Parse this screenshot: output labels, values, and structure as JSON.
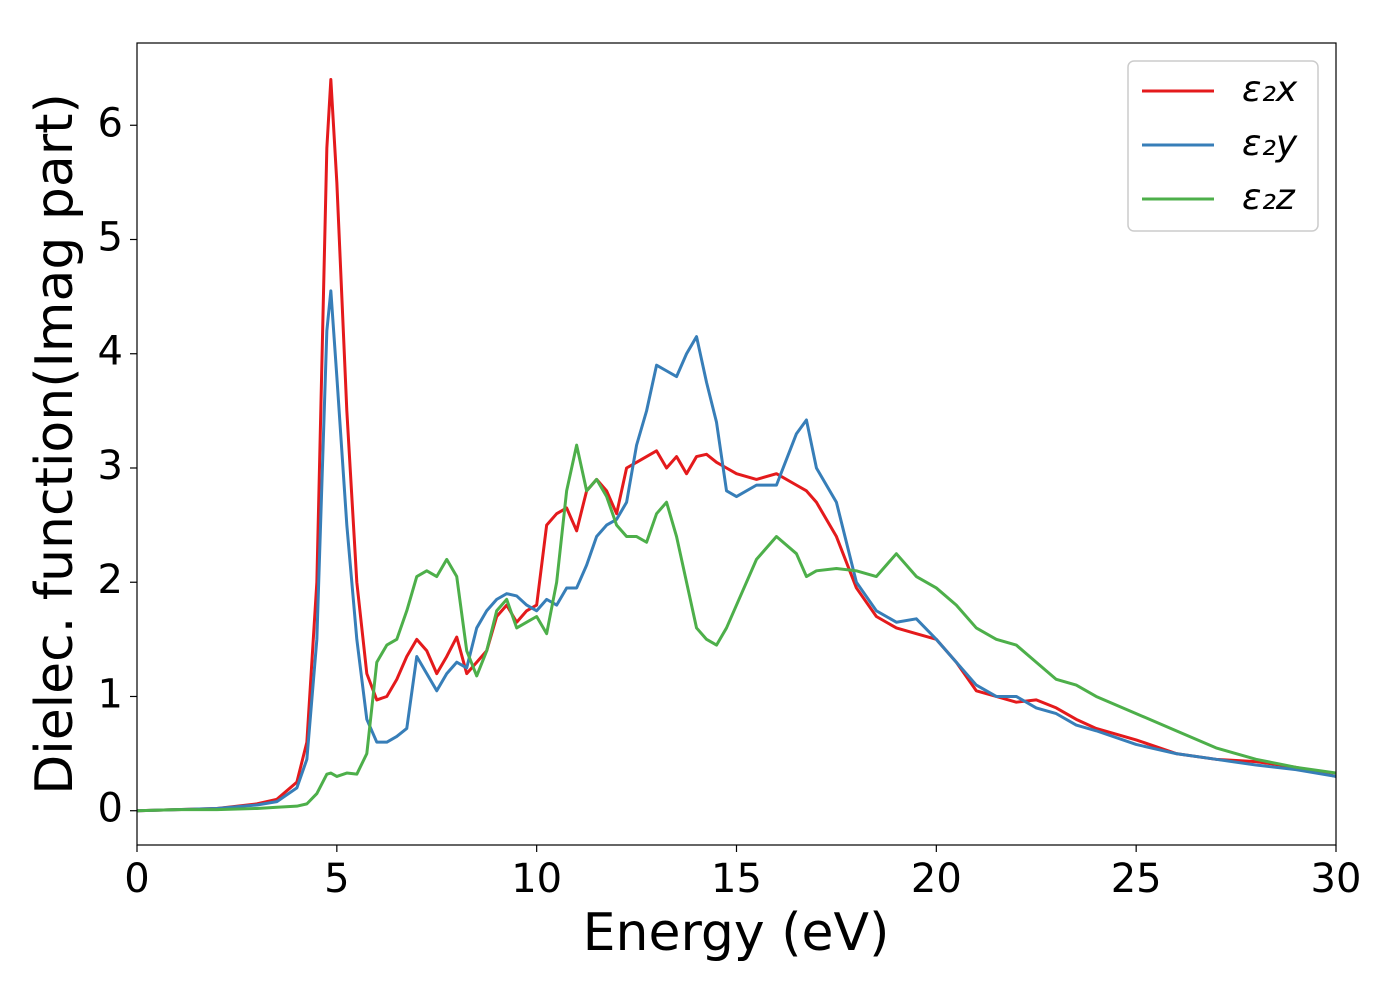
{
  "chart_data": {
    "type": "line",
    "xlabel": "Energy (eV)",
    "ylabel": "Dielec. function(Imag part)",
    "x": [
      0,
      1,
      2,
      3,
      3.5,
      4,
      4.25,
      4.5,
      4.75,
      4.85,
      5,
      5.25,
      5.5,
      5.75,
      6,
      6.25,
      6.5,
      6.75,
      7,
      7.25,
      7.5,
      7.75,
      8,
      8.25,
      8.5,
      8.75,
      9,
      9.25,
      9.5,
      9.75,
      10,
      10.25,
      10.5,
      10.75,
      11,
      11.25,
      11.5,
      11.75,
      12,
      12.25,
      12.5,
      12.75,
      13,
      13.25,
      13.5,
      13.75,
      14,
      14.25,
      14.5,
      14.75,
      15,
      15.5,
      16,
      16.5,
      16.75,
      17,
      17.5,
      18,
      18.5,
      19,
      19.5,
      20,
      20.5,
      21,
      21.5,
      22,
      22.5,
      23,
      23.5,
      24,
      25,
      26,
      27,
      28,
      29,
      30
    ],
    "series": [
      {
        "name": "ε₂x",
        "color": "#e41a1c",
        "values": [
          0,
          0.01,
          0.02,
          0.06,
          0.1,
          0.25,
          0.6,
          2.0,
          5.8,
          6.4,
          5.5,
          3.5,
          2.0,
          1.2,
          0.97,
          1.0,
          1.15,
          1.35,
          1.5,
          1.4,
          1.2,
          1.35,
          1.52,
          1.2,
          1.3,
          1.4,
          1.7,
          1.8,
          1.65,
          1.75,
          1.8,
          2.5,
          2.6,
          2.65,
          2.45,
          2.8,
          2.9,
          2.8,
          2.6,
          3.0,
          3.05,
          3.1,
          3.15,
          3.0,
          3.1,
          2.95,
          3.1,
          3.12,
          3.05,
          3.0,
          2.95,
          2.9,
          2.95,
          2.85,
          2.8,
          2.7,
          2.4,
          1.95,
          1.7,
          1.6,
          1.55,
          1.5,
          1.3,
          1.05,
          1.0,
          0.95,
          0.97,
          0.9,
          0.8,
          0.72,
          0.62,
          0.5,
          0.45,
          0.43,
          0.38,
          0.3
        ]
      },
      {
        "name": "ε₂y",
        "color": "#377eb8",
        "values": [
          0,
          0.01,
          0.02,
          0.05,
          0.08,
          0.2,
          0.45,
          1.5,
          4.2,
          4.55,
          3.8,
          2.5,
          1.5,
          0.8,
          0.6,
          0.6,
          0.65,
          0.72,
          1.35,
          1.2,
          1.05,
          1.2,
          1.3,
          1.25,
          1.6,
          1.75,
          1.85,
          1.9,
          1.88,
          1.8,
          1.75,
          1.85,
          1.8,
          1.95,
          1.95,
          2.15,
          2.4,
          2.5,
          2.55,
          2.7,
          3.2,
          3.5,
          3.9,
          3.85,
          3.8,
          4.0,
          4.15,
          3.75,
          3.4,
          2.8,
          2.75,
          2.85,
          2.85,
          3.3,
          3.42,
          3.0,
          2.7,
          2.0,
          1.75,
          1.65,
          1.68,
          1.5,
          1.3,
          1.1,
          1.0,
          1.0,
          0.9,
          0.85,
          0.75,
          0.7,
          0.58,
          0.5,
          0.45,
          0.4,
          0.36,
          0.3
        ]
      },
      {
        "name": "ε₂z",
        "color": "#4daf4a",
        "values": [
          0,
          0.01,
          0.01,
          0.02,
          0.03,
          0.04,
          0.06,
          0.15,
          0.32,
          0.33,
          0.3,
          0.33,
          0.32,
          0.5,
          1.3,
          1.45,
          1.5,
          1.75,
          2.05,
          2.1,
          2.05,
          2.2,
          2.05,
          1.4,
          1.18,
          1.4,
          1.75,
          1.85,
          1.6,
          1.65,
          1.7,
          1.55,
          2.0,
          2.8,
          3.2,
          2.8,
          2.9,
          2.75,
          2.5,
          2.4,
          2.4,
          2.35,
          2.6,
          2.7,
          2.4,
          2.0,
          1.6,
          1.5,
          1.45,
          1.6,
          1.8,
          2.2,
          2.4,
          2.25,
          2.05,
          2.1,
          2.12,
          2.1,
          2.05,
          2.25,
          2.05,
          1.95,
          1.8,
          1.6,
          1.5,
          1.45,
          1.3,
          1.15,
          1.1,
          1.0,
          0.85,
          0.7,
          0.55,
          0.45,
          0.38,
          0.33
        ]
      }
    ],
    "xlim": [
      0,
      30
    ],
    "xticks": [
      0,
      5,
      10,
      15,
      20,
      25,
      30
    ],
    "ylim": [
      -0.3,
      6.72
    ],
    "yticks": [
      0,
      1,
      2,
      3,
      4,
      5,
      6
    ],
    "grid": false,
    "legend": "upper right"
  }
}
